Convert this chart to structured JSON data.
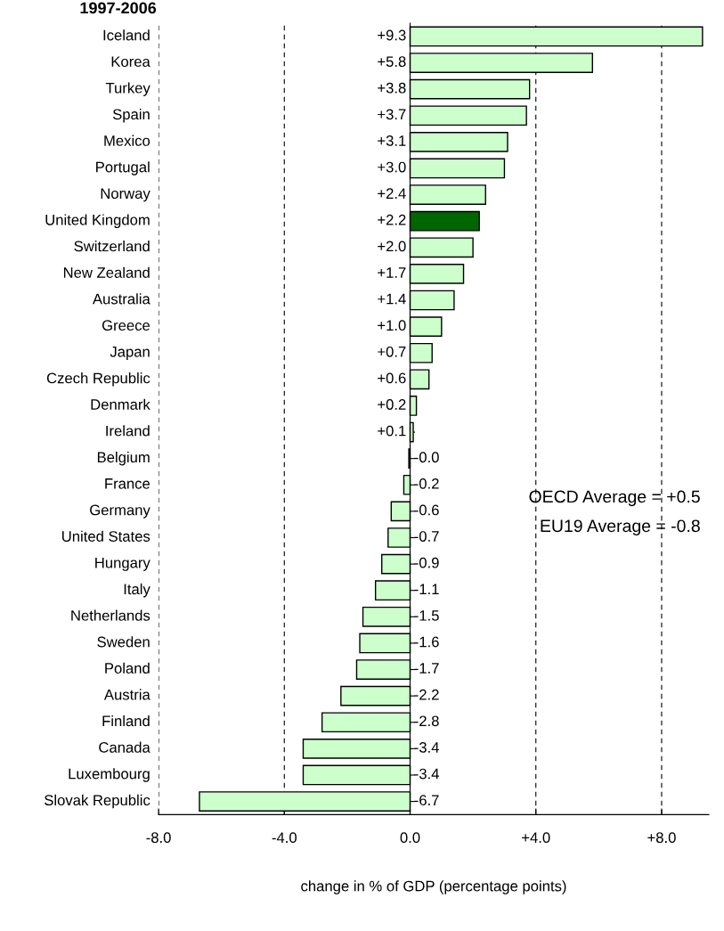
{
  "chart_data": {
    "type": "bar",
    "orientation": "horizontal",
    "title": "1997-2006",
    "xlabel": "change in % of GDP (percentage points)",
    "categories": [
      "Iceland",
      "Korea",
      "Turkey",
      "Spain",
      "Mexico",
      "Portugal",
      "Norway",
      "United Kingdom",
      "Switzerland",
      "New Zealand",
      "Australia",
      "Greece",
      "Japan",
      "Czech Republic",
      "Denmark",
      "Ireland",
      "Belgium",
      "France",
      "Germany",
      "United States",
      "Hungary",
      "Italy",
      "Netherlands",
      "Sweden",
      "Poland",
      "Austria",
      "Finland",
      "Canada",
      "Luxembourg",
      "Slovak Republic"
    ],
    "values": [
      9.3,
      5.8,
      3.8,
      3.7,
      3.1,
      3.0,
      2.4,
      2.2,
      2.0,
      1.7,
      1.4,
      1.0,
      0.7,
      0.6,
      0.2,
      0.1,
      -0.04,
      -0.2,
      -0.6,
      -0.7,
      -0.9,
      -1.1,
      -1.5,
      -1.6,
      -1.7,
      -2.2,
      -2.8,
      -3.4,
      -3.4,
      -6.7
    ],
    "value_labels": [
      "+9.3",
      "+5.8",
      "+3.8",
      "+3.7",
      "+3.1",
      "+3.0",
      "+2.4",
      "+2.2",
      "+2.0",
      "+1.7",
      "+1.4",
      "+1.0",
      "+0.7",
      "+0.6",
      "+0.2",
      "+0.1",
      "-0.0",
      "-0.2",
      "-0.6",
      "-0.7",
      "-0.9",
      "-1.1",
      "-1.5",
      "-1.6",
      "-1.7",
      "-2.2",
      "-2.8",
      "-3.4",
      "-3.4",
      "-6.7"
    ],
    "colors": [
      "#ccffcc",
      "#ccffcc",
      "#ccffcc",
      "#ccffcc",
      "#ccffcc",
      "#ccffcc",
      "#ccffcc",
      "#006600",
      "#ccffcc",
      "#ccffcc",
      "#ccffcc",
      "#ccffcc",
      "#ccffcc",
      "#ccffcc",
      "#ccffcc",
      "#ccffcc",
      "#ccffcc",
      "#ccffcc",
      "#ccffcc",
      "#ccffcc",
      "#ccffcc",
      "#ccffcc",
      "#ccffcc",
      "#ccffcc",
      "#ccffcc",
      "#ccffcc",
      "#ccffcc",
      "#ccffcc",
      "#ccffcc",
      "#ccffcc"
    ],
    "xlim": [
      -8,
      9.5
    ],
    "xticks": [
      {
        "value": -8,
        "label": "-8.0"
      },
      {
        "value": -4,
        "label": "-4.0"
      },
      {
        "value": 0,
        "label": "0.0"
      },
      {
        "value": 4,
        "label": "+4.0"
      },
      {
        "value": 8,
        "label": "+8.0"
      }
    ],
    "grid": "x",
    "annotations": [
      "OECD Average = +0.5",
      "EU19 Average = -0.8"
    ]
  }
}
